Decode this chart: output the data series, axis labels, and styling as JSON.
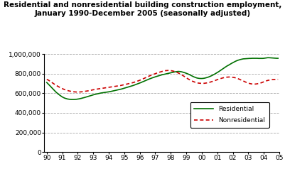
{
  "title_line1": "Residential and nonresidential building construction employment,",
  "title_line2": "January 1990-December 2005 (seasonally adjusted)",
  "title_fontsize": 7.5,
  "ylim": [
    0,
    1000000
  ],
  "yticks": [
    0,
    200000,
    400000,
    600000,
    800000,
    1000000
  ],
  "xtick_labels": [
    "90",
    "91",
    "92",
    "93",
    "94",
    "95",
    "96",
    "97",
    "98",
    "99",
    "00",
    "01",
    "02",
    "03",
    "04",
    "05"
  ],
  "residential_color": "#007000",
  "nonresidential_color": "#cc0000",
  "grid_color": "#aaaaaa",
  "background_color": "#ffffff",
  "residential": [
    710000,
    697000,
    683000,
    669000,
    654000,
    641000,
    627000,
    614000,
    602000,
    591000,
    581000,
    572000,
    563000,
    556000,
    550000,
    546000,
    542000,
    540000,
    538000,
    537000,
    537000,
    537000,
    538000,
    539000,
    541000,
    543000,
    546000,
    549000,
    553000,
    556000,
    560000,
    564000,
    568000,
    572000,
    576000,
    580000,
    584000,
    588000,
    591000,
    594000,
    597000,
    600000,
    603000,
    605000,
    607000,
    609000,
    611000,
    613000,
    615000,
    617000,
    620000,
    623000,
    626000,
    629000,
    632000,
    635000,
    638000,
    641000,
    644000,
    648000,
    652000,
    656000,
    660000,
    664000,
    668000,
    672000,
    676000,
    680000,
    685000,
    690000,
    695000,
    700000,
    705000,
    710000,
    716000,
    721000,
    727000,
    733000,
    738000,
    744000,
    749000,
    754000,
    759000,
    763000,
    768000,
    772000,
    776000,
    780000,
    784000,
    788000,
    791000,
    794000,
    797000,
    800000,
    803000,
    806000,
    809000,
    812000,
    815000,
    818000,
    820000,
    822000,
    823000,
    822000,
    820000,
    817000,
    813000,
    809000,
    804000,
    799000,
    793000,
    787000,
    780000,
    773000,
    767000,
    762000,
    757000,
    754000,
    752000,
    751000,
    751000,
    752000,
    754000,
    757000,
    761000,
    765000,
    770000,
    776000,
    782000,
    789000,
    796000,
    804000,
    812000,
    820000,
    829000,
    838000,
    847000,
    856000,
    865000,
    874000,
    882000,
    889000,
    897000,
    905000,
    912000,
    919000,
    926000,
    932000,
    937000,
    941000,
    945000,
    948000,
    951000,
    952000,
    953000,
    954000,
    955000,
    956000,
    956000,
    957000,
    957000,
    957000,
    957000,
    957000,
    956000,
    956000,
    956000,
    956000,
    957000,
    959000,
    961000,
    963000,
    963000,
    962000,
    961000,
    960000,
    959000,
    958000,
    957000,
    957000
  ],
  "nonresidential": [
    742000,
    736000,
    728000,
    719000,
    710000,
    701000,
    692000,
    684000,
    676000,
    668000,
    661000,
    654000,
    648000,
    642000,
    637000,
    633000,
    629000,
    625000,
    622000,
    619000,
    617000,
    615000,
    614000,
    613000,
    613000,
    613000,
    614000,
    615000,
    617000,
    619000,
    621000,
    623000,
    625000,
    628000,
    630000,
    633000,
    636000,
    638000,
    641000,
    643000,
    645000,
    647000,
    649000,
    651000,
    653000,
    655000,
    657000,
    659000,
    661000,
    663000,
    665000,
    667000,
    669000,
    671000,
    673000,
    675000,
    677000,
    679000,
    682000,
    685000,
    688000,
    691000,
    694000,
    697000,
    700000,
    703000,
    706000,
    710000,
    714000,
    718000,
    723000,
    728000,
    733000,
    738000,
    744000,
    750000,
    756000,
    762000,
    768000,
    774000,
    780000,
    785000,
    790000,
    795000,
    800000,
    805000,
    810000,
    814000,
    818000,
    822000,
    826000,
    829000,
    831000,
    832000,
    833000,
    832000,
    831000,
    829000,
    826000,
    822000,
    817000,
    812000,
    806000,
    799000,
    792000,
    784000,
    776000,
    767000,
    758000,
    750000,
    742000,
    735000,
    728000,
    722000,
    717000,
    712000,
    708000,
    705000,
    703000,
    702000,
    701000,
    701000,
    702000,
    704000,
    706000,
    709000,
    712000,
    716000,
    720000,
    724000,
    729000,
    734000,
    739000,
    744000,
    748000,
    752000,
    756000,
    759000,
    762000,
    764000,
    765000,
    766000,
    766000,
    765000,
    763000,
    761000,
    758000,
    754000,
    749000,
    744000,
    738000,
    732000,
    726000,
    720000,
    714000,
    709000,
    704000,
    700000,
    697000,
    695000,
    694000,
    694000,
    695000,
    697000,
    700000,
    703000,
    707000,
    712000,
    717000,
    722000,
    727000,
    731000,
    734000,
    737000,
    739000,
    740000,
    741000,
    741000,
    741000,
    742000
  ]
}
